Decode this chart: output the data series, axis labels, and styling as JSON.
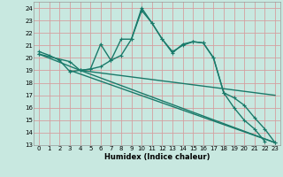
{
  "xlabel": "Humidex (Indice chaleur)",
  "xlim": [
    -0.5,
    23.5
  ],
  "ylim": [
    13,
    24.5
  ],
  "xticks": [
    0,
    1,
    2,
    3,
    4,
    5,
    6,
    7,
    8,
    9,
    10,
    11,
    12,
    13,
    14,
    15,
    16,
    17,
    18,
    19,
    20,
    21,
    22,
    23
  ],
  "yticks": [
    13,
    14,
    15,
    16,
    17,
    18,
    19,
    20,
    21,
    22,
    23,
    24
  ],
  "bg_color": "#c8e8e0",
  "line_color": "#1a7a6a",
  "grid_color": "#e0b8b8",
  "line1": {
    "x": [
      0,
      1,
      2,
      3,
      4,
      5,
      6,
      7,
      8,
      9,
      10,
      11,
      12,
      13,
      14,
      15,
      16,
      17,
      18,
      19,
      20,
      21,
      22
    ],
    "y": [
      20.5,
      20.2,
      19.8,
      18.9,
      19.0,
      19.1,
      21.1,
      19.8,
      20.2,
      21.5,
      23.8,
      22.8,
      21.5,
      20.4,
      21.1,
      21.3,
      21.2,
      20.0,
      17.2,
      16.0,
      15.0,
      14.3,
      13.3
    ]
  },
  "line2": {
    "x": [
      0,
      4,
      23
    ],
    "y": [
      20.3,
      19.0,
      13.2
    ]
  },
  "line3_straight": {
    "x": [
      3,
      23
    ],
    "y": [
      19.0,
      13.2
    ]
  },
  "line4_straight": {
    "x": [
      4,
      23
    ],
    "y": [
      19.0,
      17.0
    ]
  },
  "line5": {
    "x": [
      0,
      3,
      4,
      5,
      6,
      7,
      8,
      9,
      10,
      11,
      12,
      13,
      14,
      15,
      16,
      17,
      18,
      19,
      20,
      21,
      22,
      23
    ],
    "y": [
      20.3,
      19.7,
      19.0,
      19.1,
      19.3,
      19.8,
      21.5,
      21.5,
      24.0,
      22.8,
      21.5,
      20.5,
      21.0,
      21.3,
      21.2,
      20.0,
      17.2,
      16.8,
      16.2,
      15.2,
      14.3,
      13.2
    ]
  }
}
